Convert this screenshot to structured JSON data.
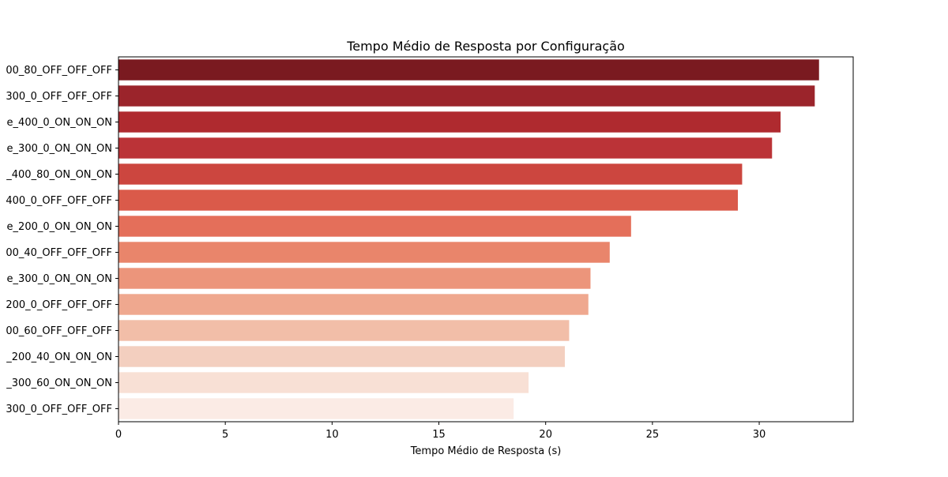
{
  "chart_data": {
    "type": "bar",
    "orientation": "horizontal",
    "title": "Tempo Médio de Resposta por Configuração",
    "xlabel": "Tempo Médio de Resposta (s)",
    "ylabel": "",
    "xlim": [
      0,
      34.4
    ],
    "xticks": [
      0,
      5,
      10,
      15,
      20,
      25,
      30
    ],
    "grid": false,
    "categories": [
      "00_80_OFF_OFF_OFF",
      "300_0_OFF_OFF_OFF",
      "e_400_0_ON_ON_ON",
      "e_300_0_ON_ON_ON",
      "_400_80_ON_ON_ON",
      "400_0_OFF_OFF_OFF",
      "e_200_0_ON_ON_ON",
      "00_40_OFF_OFF_OFF",
      "e_300_0_ON_ON_ON",
      "200_0_OFF_OFF_OFF",
      "00_60_OFF_OFF_OFF",
      "_200_40_ON_ON_ON",
      "_300_60_ON_ON_ON",
      "300_0_OFF_OFF_OFF"
    ],
    "values": [
      32.8,
      32.6,
      31.0,
      30.6,
      29.2,
      29.0,
      24.0,
      23.0,
      22.1,
      22.0,
      21.1,
      20.9,
      19.2,
      18.5
    ],
    "colors": [
      "#7a1a20",
      "#9b242b",
      "#af2a2f",
      "#bb3337",
      "#cc463f",
      "#da5a4a",
      "#e46f5a",
      "#e9856b",
      "#ec957b",
      "#efa88f",
      "#f2bea8",
      "#f3cfbf",
      "#f8e0d5",
      "#fbebe5"
    ]
  }
}
